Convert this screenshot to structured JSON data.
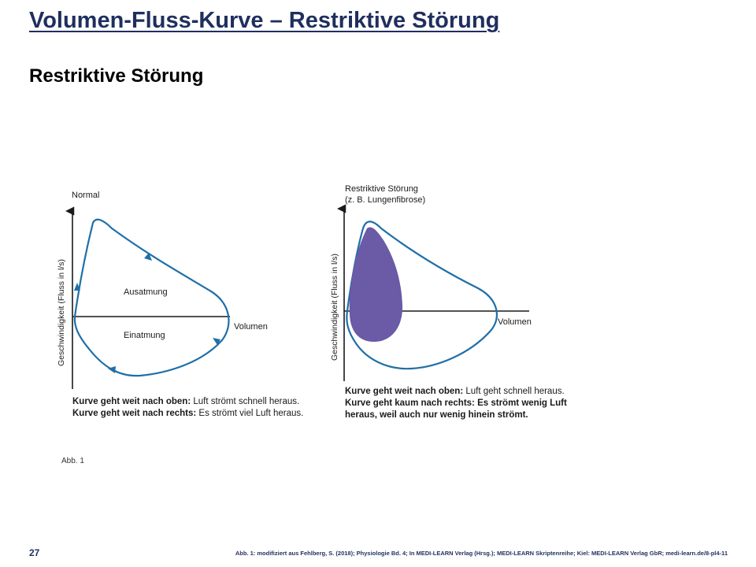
{
  "slide": {
    "title": "Volumen-Fluss-Kurve – Restriktive Störung",
    "subtitle": "Restriktive Störung",
    "page_number": "27",
    "source_note": "Abb. 1: modifiziert aus Fehlberg, S. (2018); Physiologie Bd. 4; In MEDI-LEARN Verlag (Hrsg.); MEDI-LEARN Skriptenreihe; Kiel: MEDI-LEARN Verlag GbR; medi-learn.de/8-pl4-11",
    "figure_label": "Abb. 1"
  },
  "colors": {
    "title": "#1f2f5e",
    "curve": "#1f6fa8",
    "restrictive_fill": "#6b5aa6",
    "axis": "#1a1a1a"
  },
  "panels": {
    "normal": {
      "title": "Normal",
      "y_axis_label": "Geschwindigkeit (Fluss in l/s)",
      "x_axis_label": "Volumen",
      "exhalation_label": "Ausatmung",
      "inhalation_label": "Einatmung",
      "caption_1_bold": "Kurve geht weit nach oben:",
      "caption_1_text": " Luft strömt schnell heraus.",
      "caption_2_bold": "Kurve geht weit nach rechts:",
      "caption_2_text": " Es strömt viel Luft heraus."
    },
    "restrictive": {
      "title_line_1": "Restriktive Störung",
      "title_line_2": "(z. B. Lungenfibrose)",
      "y_axis_label": "Geschwindigkeit (Fluss in l/s)",
      "x_axis_label": "Volumen",
      "caption_1_bold": "Kurve geht weit nach oben:",
      "caption_1_text": " Luft geht schnell heraus.",
      "caption_2_bold": "Kurve geht kaum nach rechts:",
      "caption_2_text": " Es strömt wenig Luft",
      "caption_3_text": "heraus, weil auch nur wenig hinein strömt."
    }
  }
}
